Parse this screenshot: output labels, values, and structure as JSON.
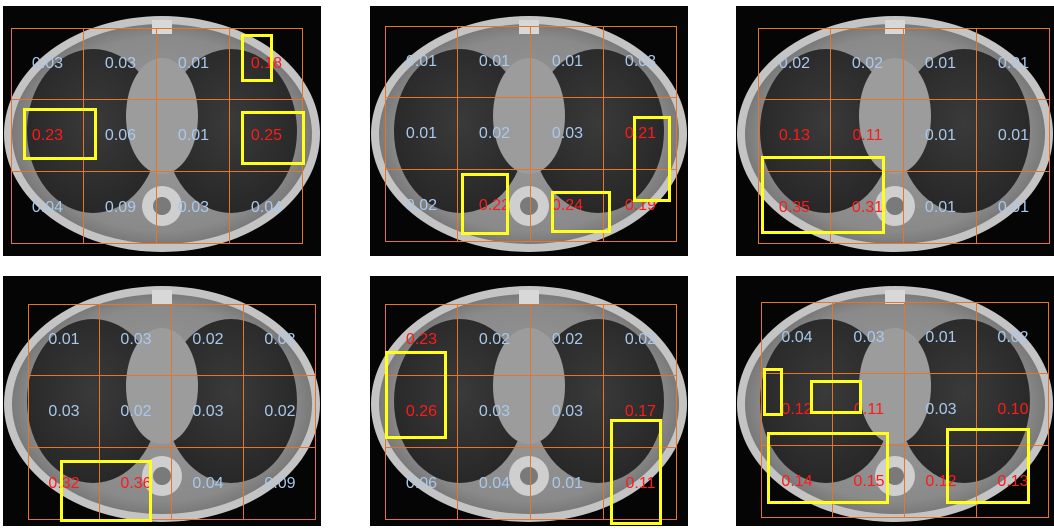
{
  "colors": {
    "grid": "#e8742a",
    "low_value": "#a8c8ec",
    "high_value": "#ff1a1a",
    "highlight_box": "#ffff1a"
  },
  "panels": [
    {
      "values": [
        [
          "0.03",
          "0.03",
          "0.01",
          "0.18"
        ],
        [
          "0.23",
          "0.06",
          "0.01",
          "0.25"
        ],
        [
          "0.04",
          "0.09",
          "0.03",
          "0.04"
        ]
      ]
    },
    {
      "values": [
        [
          "0.01",
          "0.01",
          "0.01",
          "0.03"
        ],
        [
          "0.01",
          "0.02",
          "0.03",
          "0.21"
        ],
        [
          "0.02",
          "0.22",
          "0.24",
          "0.19"
        ]
      ]
    },
    {
      "values": [
        [
          "0.02",
          "0.02",
          "0.01",
          "0.01"
        ],
        [
          "0.13",
          "0.11",
          "0.01",
          "0.01"
        ],
        [
          "0.35",
          "0.31",
          "0.01",
          "0.01"
        ]
      ]
    },
    {
      "values": [
        [
          "0.01",
          "0.03",
          "0.02",
          "0.03"
        ],
        [
          "0.03",
          "0.02",
          "0.03",
          "0.02"
        ],
        [
          "0.32",
          "0.36",
          "0.04",
          "0.09"
        ]
      ]
    },
    {
      "values": [
        [
          "0.23",
          "0.02",
          "0.02",
          "0.02"
        ],
        [
          "0.26",
          "0.03",
          "0.03",
          "0.17"
        ],
        [
          "0.06",
          "0.04",
          "0.01",
          "0.11"
        ]
      ]
    },
    {
      "values": [
        [
          "0.04",
          "0.03",
          "0.01",
          "0.02"
        ],
        [
          "0.12",
          "0.11",
          "0.03",
          "0.10"
        ],
        [
          "0.14",
          "0.15",
          "0.12",
          "0.13"
        ]
      ]
    }
  ]
}
